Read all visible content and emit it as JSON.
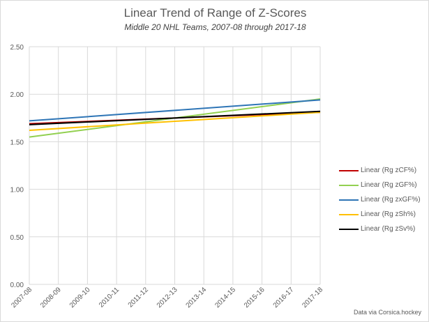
{
  "chart_data": {
    "type": "line",
    "title": "Linear Trend of Range of Z-Scores",
    "subtitle": "Middle 20 NHL Teams, 2007-08 through 2017-18",
    "categories": [
      "2007-08",
      "2008-09",
      "2009-10",
      "2010-11",
      "2011-12",
      "2012-13",
      "2013-14",
      "2014-15",
      "2015-16",
      "2016-17",
      "2017-18"
    ],
    "ylim": [
      0,
      2.5
    ],
    "yticks": [
      "0.00",
      "0.50",
      "1.00",
      "1.50",
      "2.00",
      "2.50"
    ],
    "grid": true,
    "legend_position": "right",
    "series": [
      {
        "name": "Linear (Rg zCF%)",
        "color": "#c00000",
        "start": 1.69,
        "end": 1.81
      },
      {
        "name": "Linear (Rg zGF%)",
        "color": "#92d050",
        "start": 1.55,
        "end": 1.95
      },
      {
        "name": "Linear (Rg zxGF%)",
        "color": "#2e75b6",
        "start": 1.72,
        "end": 1.94
      },
      {
        "name": "Linear (Rg zSh%)",
        "color": "#ffc000",
        "start": 1.62,
        "end": 1.81
      },
      {
        "name": "Linear (Rg zSv%)",
        "color": "#000000",
        "start": 1.68,
        "end": 1.82
      }
    ]
  },
  "credit": "Data via Corsica.hockey"
}
